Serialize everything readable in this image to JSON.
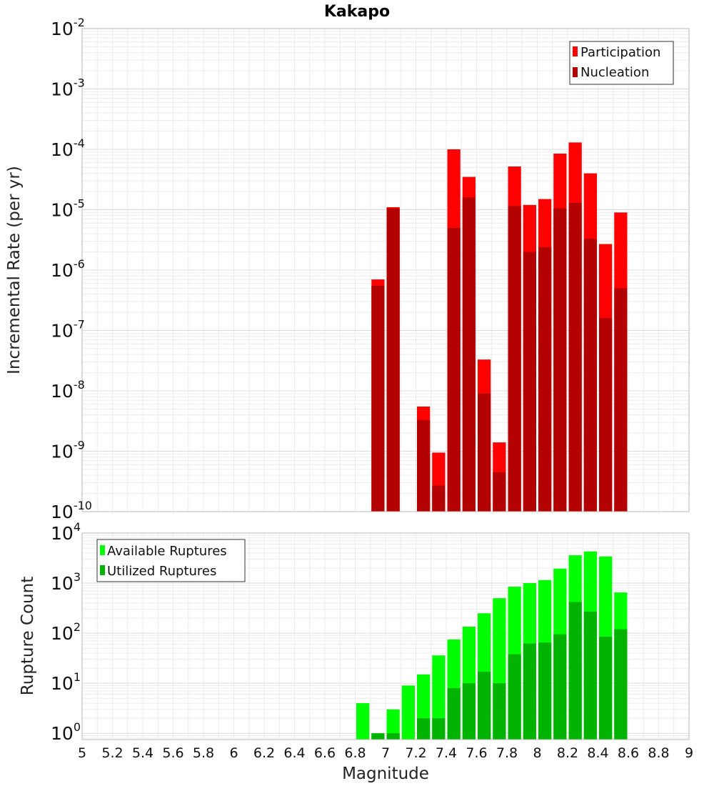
{
  "chart_data": [
    {
      "type": "bar",
      "title": "Kakapo",
      "xlabel": "",
      "ylabel": "Incremental Rate (per yr)",
      "yscale": "log",
      "ylim": [
        1e-10,
        0.01
      ],
      "xlim": [
        5,
        9
      ],
      "bar_width": 0.1,
      "y_tick_exponents": [
        "-10",
        "-9",
        "-8",
        "-7",
        "-6",
        "-5",
        "-4",
        "-3",
        "-2"
      ],
      "legend_position": "top-right",
      "grid": true,
      "x": [
        6.95,
        7.05,
        7.25,
        7.35,
        7.45,
        7.55,
        7.65,
        7.75,
        7.85,
        7.95,
        8.05,
        8.15,
        8.25,
        8.35,
        8.45,
        8.55
      ],
      "series": [
        {
          "name": "Participation",
          "color": "#ff0000",
          "values": [
            7e-07,
            1.1e-05,
            5.5e-09,
            9.5e-10,
            0.0001,
            3.5e-05,
            3.3e-08,
            1.4e-09,
            5.2e-05,
            1.2e-05,
            1.5e-05,
            8.5e-05,
            0.00013,
            4e-05,
            2.7e-06,
            9e-06
          ]
        },
        {
          "name": "Nucleation",
          "color": "#b30000",
          "values": [
            5.5e-07,
            1.05e-05,
            3.3e-09,
            2.7e-10,
            5e-06,
            1.6e-05,
            9e-09,
            4.5e-10,
            1.15e-05,
            2e-06,
            2.4e-06,
            1.05e-05,
            1.3e-05,
            3.3e-06,
            1.6e-07,
            5e-07
          ]
        }
      ]
    },
    {
      "type": "bar",
      "title": "",
      "xlabel": "Magnitude",
      "ylabel": "Rupture Count",
      "yscale": "log",
      "ylim": [
        0.75,
        10000
      ],
      "xlim": [
        5,
        9
      ],
      "bar_width": 0.1,
      "y_tick_exponents": [
        "0",
        "1",
        "2",
        "3",
        "4"
      ],
      "x_tick_labels": [
        "5",
        "5.2",
        "5.4",
        "5.6",
        "5.8",
        "6",
        "6.2",
        "6.4",
        "6.6",
        "6.8",
        "7",
        "7.2",
        "7.4",
        "7.6",
        "7.8",
        "8",
        "8.2",
        "8.4",
        "8.6",
        "8.8",
        "9"
      ],
      "legend_position": "top-left",
      "grid": true,
      "x": [
        6.85,
        6.95,
        7.05,
        7.15,
        7.25,
        7.35,
        7.45,
        7.55,
        7.65,
        7.75,
        7.85,
        7.95,
        8.05,
        8.15,
        8.25,
        8.35,
        8.45,
        8.55
      ],
      "series": [
        {
          "name": "Available Ruptures",
          "color": "#00ff00",
          "values": [
            4,
            1,
            3,
            9,
            15,
            36,
            75,
            135,
            250,
            500,
            850,
            1000,
            1150,
            1950,
            3600,
            4300,
            3400,
            650
          ]
        },
        {
          "name": "Utilized Ruptures",
          "color": "#00b300",
          "values": [
            0,
            1,
            1,
            0,
            2,
            2,
            8,
            10,
            17,
            10,
            38,
            62,
            65,
            95,
            420,
            270,
            85,
            120
          ]
        }
      ]
    }
  ]
}
